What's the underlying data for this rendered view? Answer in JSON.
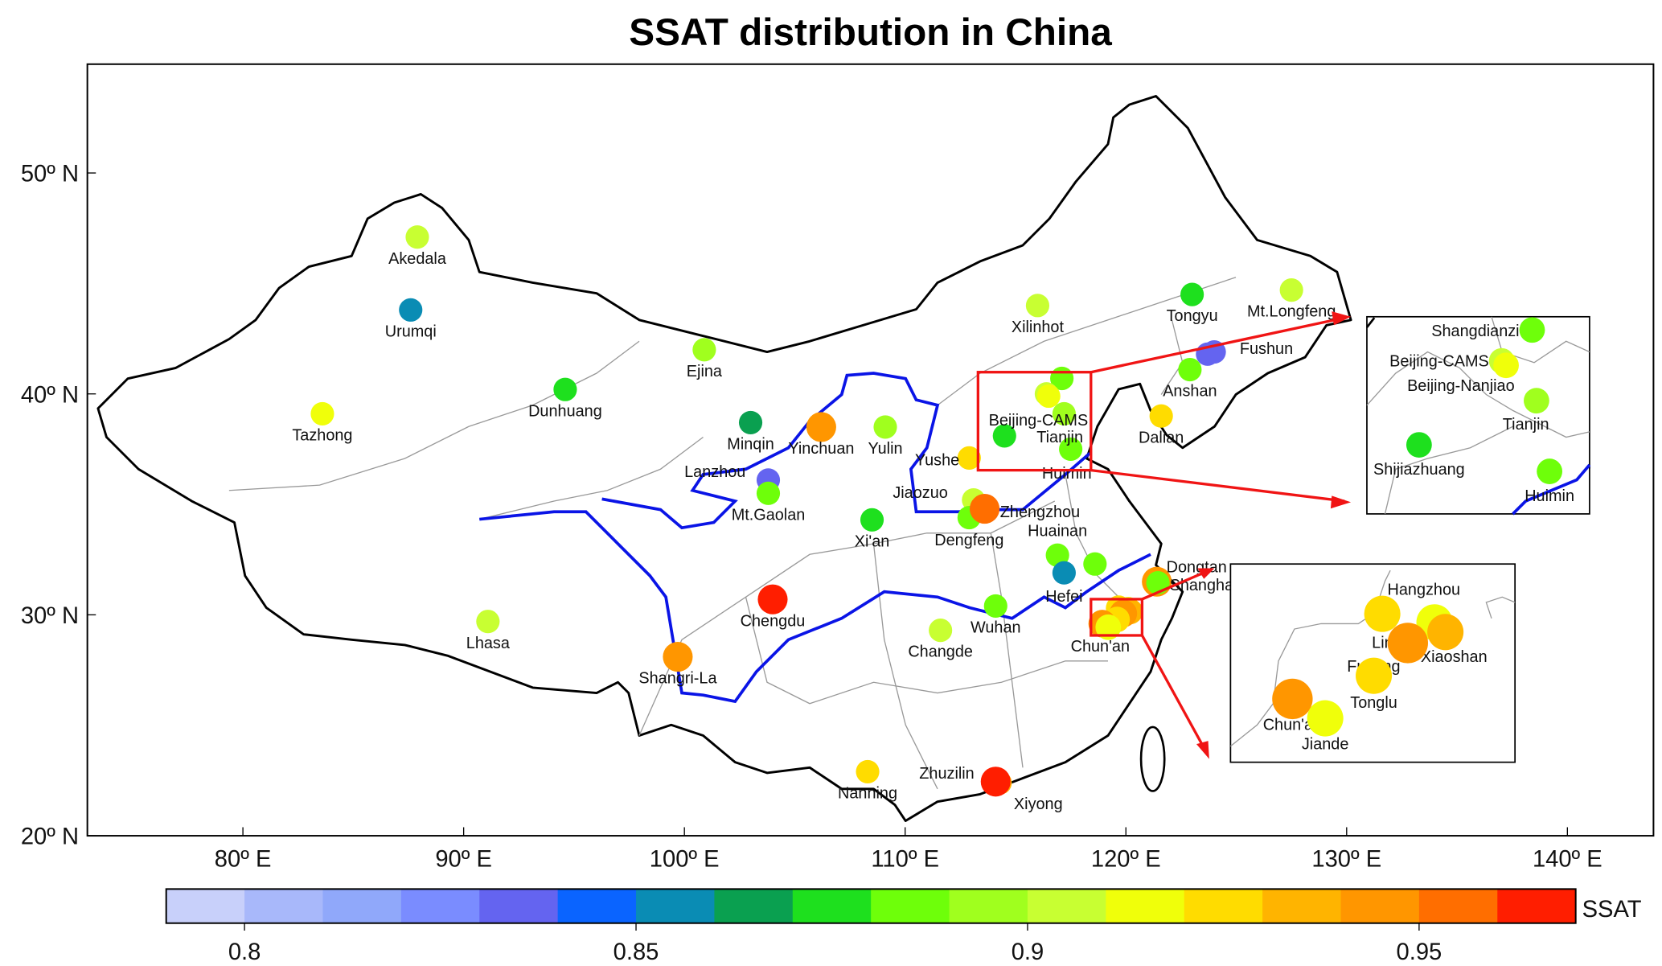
{
  "title": "SSAT distribution in China",
  "colorbar": {
    "label": "SSAT",
    "min": 0.79,
    "max": 0.97,
    "step": 0.01,
    "ticks": [
      {
        "v": 0.8,
        "t": "0.8"
      },
      {
        "v": 0.85,
        "t": "0.85"
      },
      {
        "v": 0.9,
        "t": "0.9"
      },
      {
        "v": 0.95,
        "t": "0.95"
      }
    ],
    "colors": [
      "#c8d0fa",
      "#a8b8fa",
      "#90a8fa",
      "#7a8cff",
      "#6464f0",
      "#0a64ff",
      "#0a8cb4",
      "#0aa050",
      "#1ee01e",
      "#6eff0a",
      "#a0ff1e",
      "#c8ff32",
      "#f0ff0a",
      "#ffdc00",
      "#ffb400",
      "#ff9600",
      "#ff6e00",
      "#ff1e00"
    ]
  },
  "axes": {
    "lon_ticks": [
      {
        "v": 80,
        "t": "80º E"
      },
      {
        "v": 90,
        "t": "90º E"
      },
      {
        "v": 100,
        "t": "100º E"
      },
      {
        "v": 110,
        "t": "110º E"
      },
      {
        "v": 120,
        "t": "120º E"
      },
      {
        "v": 130,
        "t": "130º E"
      },
      {
        "v": 140,
        "t": "140º E"
      }
    ],
    "lat_ticks": [
      {
        "v": 20,
        "t": "20º N"
      },
      {
        "v": 30,
        "t": "30º N"
      },
      {
        "v": 40,
        "t": "40º N"
      },
      {
        "v": 50,
        "t": "50º N"
      }
    ]
  },
  "stations": [
    {
      "name": "Akedala",
      "lon": 87.9,
      "lat": 47.1,
      "ssat": 0.905
    },
    {
      "name": "Urumqi",
      "lon": 87.6,
      "lat": 43.8,
      "ssat": 0.855
    },
    {
      "name": "Tazhong",
      "lon": 83.6,
      "lat": 39.1,
      "ssat": 0.915
    },
    {
      "name": "Dunhuang",
      "lon": 94.6,
      "lat": 40.2,
      "ssat": 0.875
    },
    {
      "name": "Ejina",
      "lon": 100.9,
      "lat": 42.0,
      "ssat": 0.895
    },
    {
      "name": "Minqin",
      "lon": 103.0,
      "lat": 38.7,
      "ssat": 0.865
    },
    {
      "name": "Yinchuan",
      "lon": 106.2,
      "lat": 38.5,
      "ssat": 0.945
    },
    {
      "name": "Lanzhou",
      "lon": 103.8,
      "lat": 36.1,
      "ssat": 0.835
    },
    {
      "name": "Mt.Gaolan",
      "lon": 103.8,
      "lat": 35.5,
      "ssat": 0.885
    },
    {
      "name": "Yulin",
      "lon": 109.1,
      "lat": 38.5,
      "ssat": 0.895
    },
    {
      "name": "Yushe",
      "lon": 112.9,
      "lat": 37.1,
      "ssat": 0.925
    },
    {
      "name": "Jiaozuo",
      "lon": 113.1,
      "lat": 35.2,
      "ssat": 0.905
    },
    {
      "name": "Dengfeng",
      "lon": 112.9,
      "lat": 34.4,
      "ssat": 0.885
    },
    {
      "name": "Zhengzhou",
      "lon": 113.6,
      "lat": 34.8,
      "ssat": 0.955
    },
    {
      "name": "Xi'an",
      "lon": 108.5,
      "lat": 34.3,
      "ssat": 0.875
    },
    {
      "name": "Chengdu",
      "lon": 104.0,
      "lat": 30.7,
      "ssat": 0.965
    },
    {
      "name": "Shangri-La",
      "lon": 99.7,
      "lat": 28.1,
      "ssat": 0.945
    },
    {
      "name": "Lhasa",
      "lon": 91.1,
      "lat": 29.7,
      "ssat": 0.905
    },
    {
      "name": "Changde",
      "lon": 111.6,
      "lat": 29.3,
      "ssat": 0.9
    },
    {
      "name": "Wuhan",
      "lon": 114.1,
      "lat": 30.4,
      "ssat": 0.885
    },
    {
      "name": "Huainan",
      "lon": 116.9,
      "lat": 32.7,
      "ssat": 0.885
    },
    {
      "name": "Hefei",
      "lon": 117.2,
      "lat": 31.9,
      "ssat": 0.855
    },
    {
      "name": "",
      "lon": 118.6,
      "lat": 32.3,
      "ssat": 0.885
    },
    {
      "name": "Shanghai",
      "lon": 121.4,
      "lat": 31.5,
      "ssat": 0.94
    },
    {
      "name": "Dongtan",
      "lon": 121.45,
      "lat": 31.45,
      "ssat": 0.885
    },
    {
      "name": "Xilinhot",
      "lon": 116.0,
      "lat": 44.0,
      "ssat": 0.9
    },
    {
      "name": "Tongyu",
      "lon": 123.0,
      "lat": 44.5,
      "ssat": 0.875
    },
    {
      "name": "Mt.Longfeng",
      "lon": 127.5,
      "lat": 44.7,
      "ssat": 0.9
    },
    {
      "name": "Fushun",
      "lon": 124.0,
      "lat": 41.9,
      "ssat": 0.835
    },
    {
      "name": "",
      "lon": 123.7,
      "lat": 41.8,
      "ssat": 0.835
    },
    {
      "name": "Anshan",
      "lon": 122.9,
      "lat": 41.1,
      "ssat": 0.885
    },
    {
      "name": "Dalian",
      "lon": 121.6,
      "lat": 39.0,
      "ssat": 0.925
    },
    {
      "name": "Nanning",
      "lon": 108.3,
      "lat": 22.9,
      "ssat": 0.925
    },
    {
      "name": "Zhuzilin",
      "lon": 114.3,
      "lat": 22.4,
      "ssat": 0.935
    },
    {
      "name": "Xiyong",
      "lon": 114.1,
      "lat": 22.45,
      "ssat": 0.965
    }
  ],
  "main_labels_beijing": [
    "Beijing-CAMS",
    "Tianjin",
    "Huimin"
  ],
  "main_label_yangtze": "Chun'an",
  "inset_north": [
    {
      "name": "Shangdianzi",
      "lon": 117.1,
      "lat": 40.7,
      "ssat": 0.885
    },
    {
      "name": "Beijing-CAMS",
      "lon": 116.4,
      "lat": 40.0,
      "ssat": 0.905
    },
    {
      "name": "Beijing-Nanjiao",
      "lon": 116.5,
      "lat": 39.9,
      "ssat": 0.915
    },
    {
      "name": "Tianjin",
      "lon": 117.2,
      "lat": 39.1,
      "ssat": 0.895
    },
    {
      "name": "Shijiazhuang",
      "lon": 114.5,
      "lat": 38.1,
      "ssat": 0.875
    },
    {
      "name": "Huimin",
      "lon": 117.5,
      "lat": 37.5,
      "ssat": 0.885
    }
  ],
  "inset_yangtze": [
    {
      "name": "Lin'an",
      "lon": 119.67,
      "lat": 30.3,
      "ssat": 0.925
    },
    {
      "name": "Hangzhou",
      "lon": 120.1,
      "lat": 30.23,
      "ssat": 0.915
    },
    {
      "name": "Xiaoshan",
      "lon": 120.19,
      "lat": 30.15,
      "ssat": 0.935
    },
    {
      "name": "Fuyang",
      "lon": 119.88,
      "lat": 30.06,
      "ssat": 0.945
    },
    {
      "name": "Tonglu",
      "lon": 119.6,
      "lat": 29.79,
      "ssat": 0.925
    },
    {
      "name": "Chun'an",
      "lon": 118.93,
      "lat": 29.6,
      "ssat": 0.945
    },
    {
      "name": "Jiande",
      "lon": 119.2,
      "lat": 29.44,
      "ssat": 0.915
    }
  ]
}
